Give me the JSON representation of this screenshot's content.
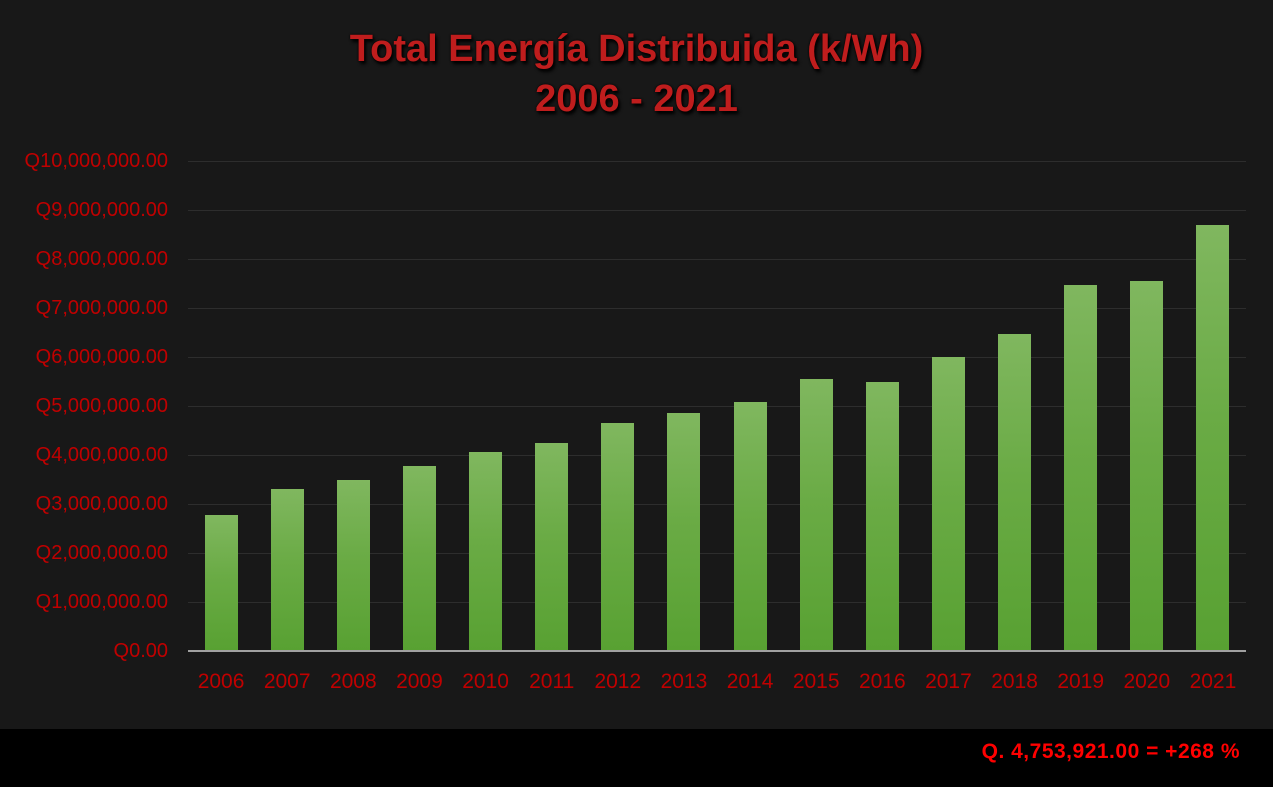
{
  "chart": {
    "title_line1": "Total Energía Distribuida (k/Wh)",
    "title_line2": "2006 - 2021"
  },
  "footer": {
    "note": "Q. 4,753,921.00 = +268 %"
  },
  "colors": {
    "page_background": "#000000",
    "chart_background": "#181818",
    "title_red": "#bf1d1d",
    "axis_label_red": "#c00000",
    "note_red": "#ff0000",
    "gridline": "#2d2d2d",
    "axis_line": "#a0a0a0",
    "bar_gradient_top": "#80b75f",
    "bar_gradient_bottom": "#58a132"
  },
  "chart_data": {
    "type": "bar",
    "title": "Total Energía Distribuida (k/Wh) 2006 - 2021",
    "xlabel": "",
    "ylabel": "",
    "categories": [
      "2006",
      "2007",
      "2008",
      "2009",
      "2010",
      "2011",
      "2012",
      "2013",
      "2014",
      "2015",
      "2016",
      "2017",
      "2018",
      "2019",
      "2020",
      "2021"
    ],
    "values": [
      2780000,
      3310000,
      3490000,
      3770000,
      4060000,
      4250000,
      4650000,
      4850000,
      5090000,
      5550000,
      5500000,
      6000000,
      6470000,
      7470000,
      7550000,
      8690000
    ],
    "ylim": [
      0,
      10000000
    ],
    "y_tick_interval": 1000000,
    "y_tick_labels": [
      "Q10,000,000.00",
      "Q9,000,000.00",
      "Q8,000,000.00",
      "Q7,000,000.00",
      "Q6,000,000.00",
      "Q5,000,000.00",
      "Q4,000,000.00",
      "Q3,000,000.00",
      "Q2,000,000.00",
      "Q1,000,000.00",
      "Q0.00"
    ],
    "grid": true,
    "legend": "none",
    "annotation": "Q. 4,753,921.00 = +268 %"
  }
}
